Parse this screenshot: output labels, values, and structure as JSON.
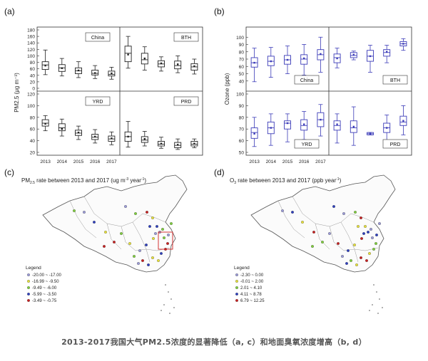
{
  "caption": "2013-2017我国大气PM2.5浓度的显著降低（a, c）和地面臭氧浓度增高（b, d）",
  "colors": {
    "pm_box": "#222222",
    "o3_box": "#3b3bb8",
    "map_outline": "#555555",
    "highlight_box": "#d22222",
    "legend_colors": [
      "#9b9bd8",
      "#e8e23a",
      "#7fcf3c",
      "#2d3fbf",
      "#c82020"
    ]
  },
  "chart_data": [
    {
      "type": "box",
      "panel_label": "(a)",
      "ylabel": "PM2.5 (μg m⁻³)",
      "categories": [
        "2013",
        "2014",
        "2015",
        "2016",
        "2017"
      ],
      "subpanels": [
        {
          "name": "China",
          "ylim": [
            0,
            180
          ],
          "yticks": [
            0,
            20,
            40,
            60,
            80,
            100,
            120,
            140,
            160,
            180
          ],
          "boxes": [
            {
              "q1": 58,
              "med": 72,
              "q3": 82,
              "mean": 70,
              "wlo": 42,
              "whi": 118
            },
            {
              "q1": 52,
              "med": 63,
              "q3": 73,
              "mean": 62,
              "wlo": 38,
              "whi": 92
            },
            {
              "q1": 45,
              "med": 54,
              "q3": 63,
              "mean": 55,
              "wlo": 33,
              "whi": 82
            },
            {
              "q1": 41,
              "med": 46,
              "q3": 56,
              "mean": 47,
              "wlo": 30,
              "whi": 70
            },
            {
              "q1": 38,
              "med": 43,
              "q3": 53,
              "mean": 46,
              "wlo": 28,
              "whi": 65
            }
          ]
        },
        {
          "name": "BTH",
          "ylim": [
            0,
            180
          ],
          "boxes": [
            {
              "q1": 82,
              "med": 108,
              "q3": 130,
              "mean": 104,
              "wlo": 62,
              "whi": 160
            },
            {
              "q1": 75,
              "med": 88,
              "q3": 108,
              "mean": 92,
              "wlo": 56,
              "whi": 128
            },
            {
              "q1": 66,
              "med": 75,
              "q3": 85,
              "mean": 77,
              "wlo": 53,
              "whi": 97
            },
            {
              "q1": 60,
              "med": 70,
              "q3": 84,
              "mean": 74,
              "wlo": 48,
              "whi": 100
            },
            {
              "q1": 56,
              "med": 66,
              "q3": 76,
              "mean": 68,
              "wlo": 44,
              "whi": 90
            }
          ]
        },
        {
          "name": "YRD",
          "ylim": [
            20,
            120
          ],
          "yticks": [
            20,
            40,
            60,
            80,
            100,
            120
          ],
          "boxes": [
            {
              "q1": 65,
              "med": 70,
              "q3": 76,
              "mean": 69,
              "wlo": 57,
              "whi": 83
            },
            {
              "q1": 57,
              "med": 62,
              "q3": 69,
              "mean": 60,
              "wlo": 48,
              "whi": 77
            },
            {
              "q1": 49,
              "med": 53,
              "q3": 58,
              "mean": 54,
              "wlo": 42,
              "whi": 65
            },
            {
              "q1": 42,
              "med": 46,
              "q3": 51,
              "mean": 47,
              "wlo": 36,
              "whi": 59
            },
            {
              "q1": 39,
              "med": 43,
              "q3": 48,
              "mean": 44,
              "wlo": 33,
              "whi": 55
            }
          ]
        },
        {
          "name": "PRD",
          "ylim": [
            20,
            120
          ],
          "boxes": [
            {
              "q1": 39,
              "med": 47,
              "q3": 55,
              "mean": 47,
              "wlo": 29,
              "whi": 73
            },
            {
              "q1": 37,
              "med": 41,
              "q3": 47,
              "mean": 43,
              "wlo": 31,
              "whi": 56
            },
            {
              "q1": 31,
              "med": 34,
              "q3": 39,
              "mean": 35,
              "wlo": 27,
              "whi": 46
            },
            {
              "q1": 28,
              "med": 32,
              "q3": 37,
              "mean": 33,
              "wlo": 25,
              "whi": 43
            },
            {
              "q1": 31,
              "med": 34,
              "q3": 39,
              "mean": 35,
              "wlo": 28,
              "whi": 43
            }
          ]
        }
      ]
    },
    {
      "type": "box",
      "panel_label": "(b)",
      "ylabel": "Ozone (ppb)",
      "categories": [
        "2013",
        "2014",
        "2015",
        "2016",
        "2017"
      ],
      "subpanels": [
        {
          "name": "China",
          "ylim": [
            30,
            110
          ],
          "yticks": [
            40,
            50,
            60,
            70,
            80,
            90,
            100
          ],
          "boxes": [
            {
              "q1": 59,
              "med": 65,
              "q3": 72,
              "mean": 65,
              "wlo": 39,
              "whi": 85
            },
            {
              "q1": 61,
              "med": 67,
              "q3": 74,
              "mean": 67,
              "wlo": 45,
              "whi": 86
            },
            {
              "q1": 63,
              "med": 69,
              "q3": 75,
              "mean": 69,
              "wlo": 50,
              "whi": 88
            },
            {
              "q1": 63,
              "med": 70,
              "q3": 76,
              "mean": 71,
              "wlo": 48,
              "whi": 90
            },
            {
              "q1": 69,
              "med": 76,
              "q3": 83,
              "mean": 77,
              "wlo": 52,
              "whi": 100
            }
          ]
        },
        {
          "name": "BTH",
          "ylim": [
            30,
            110
          ],
          "boxes": [
            {
              "q1": 65,
              "med": 72,
              "q3": 77,
              "mean": 71,
              "wlo": 58,
              "whi": 85
            },
            {
              "q1": 72,
              "med": 75,
              "q3": 79,
              "mean": 76,
              "wlo": 69,
              "whi": 81
            },
            {
              "q1": 67,
              "med": 74,
              "q3": 82,
              "mean": 74,
              "wlo": 52,
              "whi": 89
            },
            {
              "q1": 74,
              "med": 79,
              "q3": 83,
              "mean": 80,
              "wlo": 65,
              "whi": 89
            },
            {
              "q1": 88,
              "med": 91,
              "q3": 94,
              "mean": 91,
              "wlo": 82,
              "whi": 98
            }
          ]
        },
        {
          "name": "YRD",
          "ylim": [
            50,
            100
          ],
          "yticks": [
            50,
            60,
            70,
            80,
            90,
            100
          ],
          "boxes": [
            {
              "q1": 62,
              "med": 67,
              "q3": 71,
              "mean": 66,
              "wlo": 55,
              "whi": 80
            },
            {
              "q1": 66,
              "med": 71,
              "q3": 76,
              "mean": 71,
              "wlo": 56,
              "whi": 83
            },
            {
              "q1": 70,
              "med": 75,
              "q3": 77,
              "mean": 75,
              "wlo": 59,
              "whi": 83
            },
            {
              "q1": 69,
              "med": 73,
              "q3": 78,
              "mean": 74,
              "wlo": 61,
              "whi": 85
            },
            {
              "q1": 72,
              "med": 78,
              "q3": 84,
              "mean": 78,
              "wlo": 64,
              "whi": 91
            }
          ]
        },
        {
          "name": "PRD",
          "ylim": [
            50,
            100
          ],
          "boxes": [
            {
              "q1": 69,
              "med": 73,
              "q3": 77,
              "mean": 74,
              "wlo": 58,
              "whi": 83
            },
            {
              "q1": 67,
              "med": 71,
              "q3": 77,
              "mean": 72,
              "wlo": 56,
              "whi": 89
            },
            {
              "q1": 65,
              "med": 66,
              "q3": 67,
              "mean": 66,
              "wlo": 65,
              "whi": 67
            },
            {
              "q1": 67,
              "med": 71,
              "q3": 75,
              "mean": 71,
              "wlo": 59,
              "whi": 82
            },
            {
              "q1": 73,
              "med": 76,
              "q3": 81,
              "mean": 77,
              "wlo": 65,
              "whi": 90
            }
          ]
        }
      ]
    }
  ],
  "maps": [
    {
      "panel_label": "(c)",
      "title_prefix": "PM",
      "title_sub": "2.5",
      "title_rest": " rate between 2013 and 2017 (ug m",
      "title_sup": "-3",
      "title_mid": " year",
      "title_sup2": "-1",
      "title_end": ")",
      "legend_title": "Legend",
      "legend_items": [
        "-20.00 ~ -17.00",
        "-16.99 ~ -9.50",
        "-9.49 ~ -6.00",
        "-5.99 ~ -3.50",
        "-3.49 ~ -0.75"
      ],
      "highlight": true
    },
    {
      "panel_label": "(d)",
      "title_prefix": "O",
      "title_sub": "3",
      "title_rest": " rate between 2013 and 2017 (ppb year",
      "title_sup": "-1",
      "title_mid": "",
      "title_sup2": "",
      "title_end": ")",
      "legend_title": "Legend",
      "legend_items": [
        "-2.30 ~ 0.00",
        "-0.01 ~ 2.00",
        "2.01 ~ 4.10",
        "4.11 ~ 8.78",
        "6.79 ~ 12.25"
      ],
      "highlight": false
    }
  ]
}
